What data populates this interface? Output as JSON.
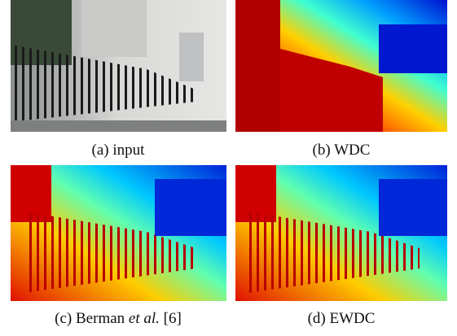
{
  "figure": {
    "panels": [
      {
        "caption": [
          "(a) input"
        ]
      },
      {
        "caption": [
          "(b) WDC"
        ]
      },
      {
        "caption": [
          "(c) Berman",
          "et al.",
          "[6]"
        ]
      },
      {
        "caption": [
          "(d) EWDC"
        ]
      }
    ]
  }
}
